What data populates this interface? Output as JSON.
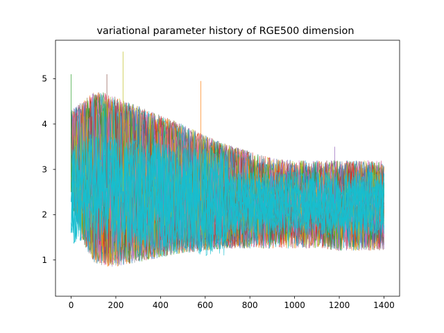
{
  "chart_data": {
    "type": "line",
    "title": "variational parameter history of RGE500 dimension",
    "xlabel": "",
    "ylabel": "",
    "xlim": [
      -70,
      1470
    ],
    "ylim": [
      0.2,
      5.85
    ],
    "x_ticks": [
      0,
      200,
      400,
      600,
      800,
      1000,
      1200,
      1400
    ],
    "y_ticks": [
      1,
      2,
      3,
      4,
      5
    ],
    "x_tick_labels": [
      "0",
      "200",
      "400",
      "600",
      "800",
      "1000",
      "1200",
      "1400"
    ],
    "y_tick_labels": [
      "1",
      "2",
      "3",
      "4",
      "5"
    ],
    "grid": false,
    "legend": "none",
    "n_iterations": 1400,
    "series_count_visible": "many (approx. 500)",
    "colors": [
      "#1f77b4",
      "#ff7f0e",
      "#2ca02c",
      "#d62728",
      "#9467bd",
      "#8c564b",
      "#e377c2",
      "#7f7f7f",
      "#bcbd22",
      "#17becf"
    ],
    "envelope": {
      "x": [
        0,
        50,
        100,
        150,
        200,
        250,
        300,
        400,
        500,
        600,
        700,
        800,
        900,
        1000,
        1100,
        1200,
        1300,
        1400
      ],
      "upper": [
        4.3,
        4.5,
        4.7,
        4.7,
        4.6,
        4.5,
        4.4,
        4.2,
        4.0,
        3.75,
        3.55,
        3.4,
        3.25,
        3.2,
        3.2,
        3.2,
        3.2,
        3.2
      ],
      "lower": [
        2.2,
        1.4,
        0.95,
        0.85,
        0.85,
        0.9,
        0.95,
        1.05,
        1.15,
        1.2,
        1.25,
        1.25,
        1.25,
        1.25,
        1.25,
        1.2,
        1.2,
        1.2
      ],
      "center": [
        2.5,
        2.5,
        2.6,
        2.6,
        2.55,
        2.5,
        2.45,
        2.4,
        2.35,
        2.3,
        2.25,
        2.25,
        2.25,
        2.25,
        2.25,
        2.25,
        2.25,
        2.25
      ]
    },
    "notable_peaks": [
      {
        "x": 0,
        "y": 5.1
      },
      {
        "x": 160,
        "y": 5.1
      },
      {
        "x": 232,
        "y": 5.6
      },
      {
        "x": 580,
        "y": 4.95
      },
      {
        "x": 1180,
        "y": 3.5
      }
    ]
  }
}
